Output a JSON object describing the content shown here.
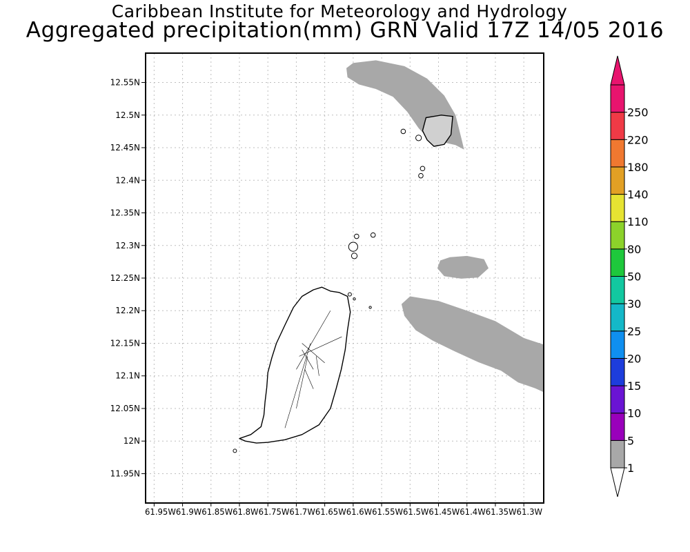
{
  "title_line1": "Caribbean Institute for Meteorology and Hydrology",
  "title_line2": "Aggregated precipitation(mm) GRN Valid 17Z 14/05 2016",
  "map": {
    "lon_range": [
      -61.965,
      -61.265
    ],
    "lat_range": [
      11.905,
      12.595
    ],
    "lat_ticks": [
      {
        "v": 12.55,
        "label": "12.55N"
      },
      {
        "v": 12.5,
        "label": "12.5N"
      },
      {
        "v": 12.45,
        "label": "12.45N"
      },
      {
        "v": 12.4,
        "label": "12.4N"
      },
      {
        "v": 12.35,
        "label": "12.35N"
      },
      {
        "v": 12.3,
        "label": "12.3N"
      },
      {
        "v": 12.25,
        "label": "12.25N"
      },
      {
        "v": 12.2,
        "label": "12.2N"
      },
      {
        "v": 12.15,
        "label": "12.15N"
      },
      {
        "v": 12.1,
        "label": "12.1N"
      },
      {
        "v": 12.05,
        "label": "12.05N"
      },
      {
        "v": 12.0,
        "label": "12N"
      },
      {
        "v": 11.95,
        "label": "11.95N"
      }
    ],
    "lon_ticks": [
      -61.95,
      -61.9,
      -61.85,
      -61.8,
      -61.75,
      -61.7,
      -61.65,
      -61.6,
      -61.55,
      -61.5,
      -61.45,
      -61.4,
      -61.35,
      -61.3
    ],
    "lon_tick_labels": "61.95W61.9W61.85W61.8W61.75W61.7W61.65W61.6W61.55W61.5W61.45W61.4W61.35W61.3W",
    "grid": true,
    "precip_color": "#a8a8a8",
    "precip_areas": [
      {
        "name": "north-band",
        "points": [
          [
            -61.6,
            12.58
          ],
          [
            -61.56,
            12.584
          ],
          [
            -61.51,
            12.575
          ],
          [
            -61.47,
            12.556
          ],
          [
            -61.44,
            12.53
          ],
          [
            -61.42,
            12.5
          ],
          [
            -61.41,
            12.465
          ],
          [
            -61.405,
            12.447
          ],
          [
            -61.42,
            12.454
          ],
          [
            -61.45,
            12.46
          ],
          [
            -61.47,
            12.466
          ],
          [
            -61.485,
            12.48
          ],
          [
            -61.505,
            12.505
          ],
          [
            -61.53,
            12.528
          ],
          [
            -61.56,
            12.54
          ],
          [
            -61.59,
            12.547
          ],
          [
            -61.61,
            12.558
          ],
          [
            -61.612,
            12.572
          ]
        ]
      },
      {
        "name": "east-blob",
        "points": [
          [
            -61.43,
            12.282
          ],
          [
            -61.4,
            12.284
          ],
          [
            -61.37,
            12.279
          ],
          [
            -61.362,
            12.265
          ],
          [
            -61.38,
            12.251
          ],
          [
            -61.41,
            12.249
          ],
          [
            -61.44,
            12.253
          ],
          [
            -61.452,
            12.265
          ],
          [
            -61.447,
            12.277
          ]
        ]
      },
      {
        "name": "southeast-band",
        "points": [
          [
            -61.5,
            12.222
          ],
          [
            -61.45,
            12.215
          ],
          [
            -61.4,
            12.2
          ],
          [
            -61.35,
            12.184
          ],
          [
            -61.3,
            12.158
          ],
          [
            -61.265,
            12.148
          ],
          [
            -61.265,
            12.075
          ],
          [
            -61.28,
            12.081
          ],
          [
            -61.31,
            12.09
          ],
          [
            -61.34,
            12.108
          ],
          [
            -61.38,
            12.121
          ],
          [
            -61.42,
            12.137
          ],
          [
            -61.46,
            12.154
          ],
          [
            -61.49,
            12.17
          ],
          [
            -61.51,
            12.192
          ],
          [
            -61.515,
            12.21
          ]
        ]
      }
    ],
    "land": {
      "grenada": [
        [
          -61.64,
          12.23
        ],
        [
          -61.625,
          12.228
        ],
        [
          -61.61,
          12.222
        ],
        [
          -61.605,
          12.198
        ],
        [
          -61.61,
          12.17
        ],
        [
          -61.614,
          12.14
        ],
        [
          -61.621,
          12.11
        ],
        [
          -61.63,
          12.08
        ],
        [
          -61.64,
          12.05
        ],
        [
          -61.66,
          12.025
        ],
        [
          -61.69,
          12.01
        ],
        [
          -61.72,
          12.002
        ],
        [
          -61.75,
          11.998
        ],
        [
          -61.77,
          11.997
        ],
        [
          -61.79,
          12.0
        ],
        [
          -61.8,
          12.004
        ],
        [
          -61.78,
          12.01
        ],
        [
          -61.762,
          12.022
        ],
        [
          -61.757,
          12.04
        ],
        [
          -61.755,
          12.06
        ],
        [
          -61.752,
          12.082
        ],
        [
          -61.75,
          12.105
        ],
        [
          -61.743,
          12.128
        ],
        [
          -61.735,
          12.15
        ],
        [
          -61.72,
          12.178
        ],
        [
          -61.705,
          12.205
        ],
        [
          -61.69,
          12.222
        ],
        [
          -61.67,
          12.232
        ],
        [
          -61.655,
          12.236
        ]
      ],
      "islets": [
        {
          "cx": -61.485,
          "cy": 12.465,
          "r": 0.005
        },
        {
          "cx": -61.478,
          "cy": 12.418,
          "r": 0.004
        },
        {
          "cx": -61.481,
          "cy": 12.407,
          "r": 0.004
        },
        {
          "cx": -61.512,
          "cy": 12.475,
          "r": 0.004
        },
        {
          "cx": -61.6,
          "cy": 12.298,
          "r": 0.008
        },
        {
          "cx": -61.598,
          "cy": 12.284,
          "r": 0.005
        },
        {
          "cx": -61.594,
          "cy": 12.314,
          "r": 0.004
        },
        {
          "cx": -61.565,
          "cy": 12.316,
          "r": 0.004
        },
        {
          "cx": -61.606,
          "cy": 12.225,
          "r": 0.003
        },
        {
          "cx": -61.598,
          "cy": 12.218,
          "r": 0.002
        },
        {
          "cx": -61.57,
          "cy": 12.205,
          "r": 0.002
        },
        {
          "cx": -61.808,
          "cy": 11.985,
          "r": 0.003
        }
      ],
      "carriacou": [
        [
          -61.472,
          12.496
        ],
        [
          -61.445,
          12.5
        ],
        [
          -61.425,
          12.498
        ],
        [
          -61.428,
          12.47
        ],
        [
          -61.44,
          12.455
        ],
        [
          -61.458,
          12.452
        ],
        [
          -61.47,
          12.462
        ],
        [
          -61.478,
          12.476
        ]
      ]
    }
  },
  "colorbar": {
    "levels": [
      "1",
      "5",
      "10",
      "15",
      "20",
      "25",
      "30",
      "50",
      "80",
      "110",
      "140",
      "180",
      "220",
      "250"
    ],
    "colors": [
      "#a8a8a8",
      "#9900bb",
      "#6a14d4",
      "#1d3ddc",
      "#0f8ff0",
      "#14b8c8",
      "#12c8a0",
      "#1ec83c",
      "#8cd22a",
      "#e6e332",
      "#e2a024",
      "#f07830",
      "#f03a46",
      "#e8146e"
    ],
    "lower_extend_color": "#ffffff",
    "upper_extend_color": "#e8146e"
  }
}
